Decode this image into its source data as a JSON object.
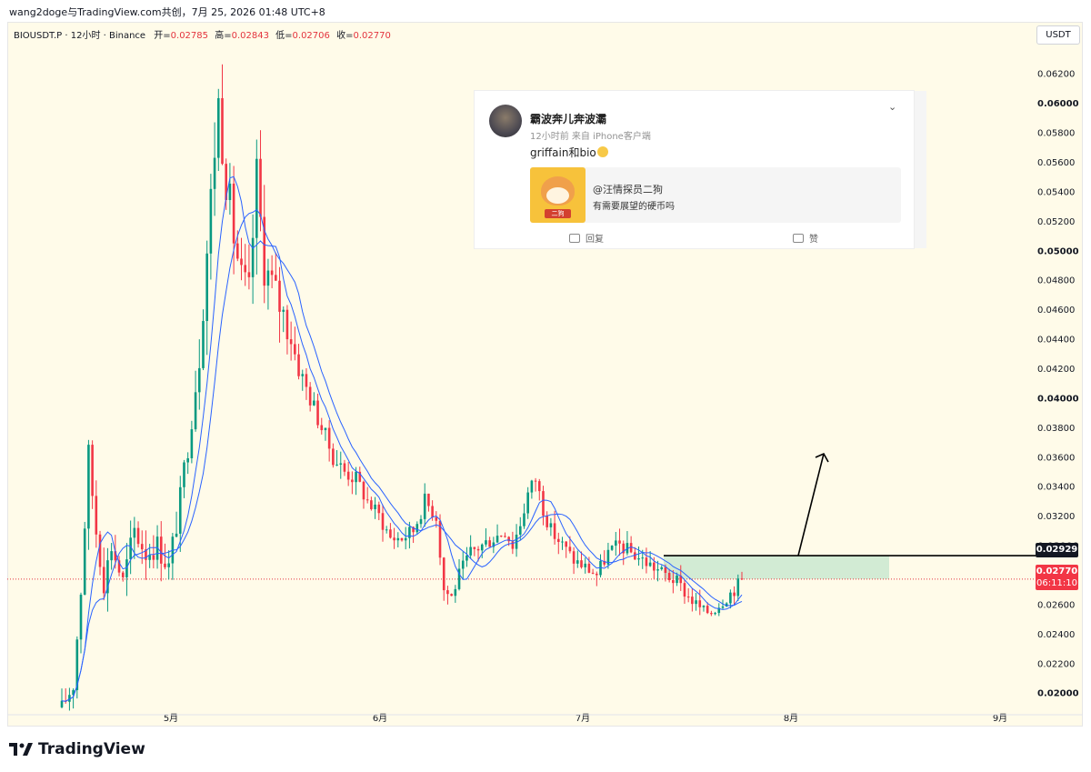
{
  "header": {
    "text": "wang2doge与TradingView.com共创，7月 25, 2026 01:48 UTC+8"
  },
  "legend": {
    "symbol": "BIOUSDT.P · 12小时 · Binance",
    "open_label": "开=",
    "open": "0.02785",
    "high_label": "高=",
    "high": "0.02843",
    "low_label": "低=",
    "low": "0.02706",
    "close_label": "收=",
    "close": "0.02770"
  },
  "currency": "USDT",
  "footer": {
    "logo_text": "TradingView"
  },
  "colors": {
    "up": "#089981",
    "down": "#f23645",
    "ma": "#2962ff",
    "background": "#fffbe9",
    "zone": "#cde9d1"
  },
  "price_tags": {
    "level": "0.02929",
    "last": "0.02770",
    "countdown": "06:11:10"
  },
  "weibo": {
    "name": "霸波奔儿奔波灞",
    "meta": "12小时前  来自 iPhone客户端",
    "text": "griffain和bio",
    "quote_user": "@汪情探员二狗",
    "quote_text": "有需要展望的硬币吗",
    "dog_tag": "二狗",
    "reply": "回复",
    "like": "赞"
  },
  "chart_data": {
    "type": "candlestick",
    "symbol": "BIOUSDT.P",
    "interval": "12小时",
    "exchange": "Binance",
    "x_labels": [
      "5月",
      "6月",
      "7月",
      "8月",
      "9月"
    ],
    "y_ticks": [
      0.02,
      0.022,
      0.024,
      0.026,
      0.028,
      0.03,
      0.032,
      0.034,
      0.036,
      0.038,
      0.04,
      0.042,
      0.044,
      0.046,
      0.048,
      0.05,
      0.052,
      0.054,
      0.056,
      0.058,
      0.06,
      0.062
    ],
    "y_tick_labels": [
      "0.02000",
      "0.02200",
      "0.02400",
      "0.02600",
      "0.02800",
      "0.03000",
      "0.03200",
      "0.03400",
      "0.03600",
      "0.03800",
      "0.04000",
      "0.04200",
      "0.04400",
      "0.04600",
      "0.04800",
      "0.05000",
      "0.05200",
      "0.05400",
      "0.05600",
      "0.05800",
      "0.06000",
      "0.06200"
    ],
    "ylim": [
      0.0185,
      0.0655
    ],
    "horizontal_level": 0.02929,
    "last_price": 0.0277,
    "close_path": [
      [
        0,
        0.019
      ],
      [
        3,
        0.0205
      ],
      [
        5,
        0.027
      ],
      [
        7,
        0.036
      ],
      [
        9,
        0.031
      ],
      [
        11,
        0.0275
      ],
      [
        13,
        0.03
      ],
      [
        16,
        0.0275
      ],
      [
        19,
        0.031
      ],
      [
        22,
        0.0295
      ],
      [
        25,
        0.03
      ],
      [
        28,
        0.0285
      ],
      [
        31,
        0.033
      ],
      [
        34,
        0.039
      ],
      [
        36,
        0.043
      ],
      [
        38,
        0.05
      ],
      [
        40,
        0.057
      ],
      [
        41,
        0.06
      ],
      [
        43,
        0.055
      ],
      [
        45,
        0.051
      ],
      [
        47,
        0.048
      ],
      [
        49,
        0.047
      ],
      [
        51,
        0.055
      ],
      [
        53,
        0.049
      ],
      [
        56,
        0.047
      ],
      [
        59,
        0.045
      ],
      [
        62,
        0.042
      ],
      [
        65,
        0.04
      ],
      [
        68,
        0.038
      ],
      [
        71,
        0.036
      ],
      [
        74,
        0.035
      ],
      [
        77,
        0.0345
      ],
      [
        80,
        0.033
      ],
      [
        83,
        0.032
      ],
      [
        86,
        0.0305
      ],
      [
        89,
        0.0305
      ],
      [
        92,
        0.031
      ],
      [
        95,
        0.033
      ],
      [
        98,
        0.032
      ],
      [
        100,
        0.027
      ],
      [
        102,
        0.0265
      ],
      [
        104,
        0.028
      ],
      [
        107,
        0.0295
      ],
      [
        110,
        0.03
      ],
      [
        113,
        0.0305
      ],
      [
        116,
        0.031
      ],
      [
        118,
        0.03
      ],
      [
        120,
        0.0315
      ],
      [
        122,
        0.0335
      ],
      [
        124,
        0.0345
      ],
      [
        126,
        0.0325
      ],
      [
        128,
        0.031
      ],
      [
        131,
        0.03
      ],
      [
        134,
        0.029
      ],
      [
        137,
        0.0285
      ],
      [
        140,
        0.028
      ],
      [
        143,
        0.0295
      ],
      [
        146,
        0.03
      ],
      [
        149,
        0.0295
      ],
      [
        152,
        0.029
      ],
      [
        155,
        0.0285
      ],
      [
        158,
        0.028
      ],
      [
        161,
        0.0275
      ],
      [
        164,
        0.0265
      ],
      [
        166,
        0.026
      ],
      [
        168,
        0.0255
      ],
      [
        170,
        0.0255
      ],
      [
        172,
        0.026
      ],
      [
        174,
        0.0265
      ],
      [
        176,
        0.027
      ],
      [
        178,
        0.0277
      ]
    ],
    "projection_arrow": {
      "from": [
        0.0293
      ],
      "to": [
        0.0362
      ]
    }
  }
}
